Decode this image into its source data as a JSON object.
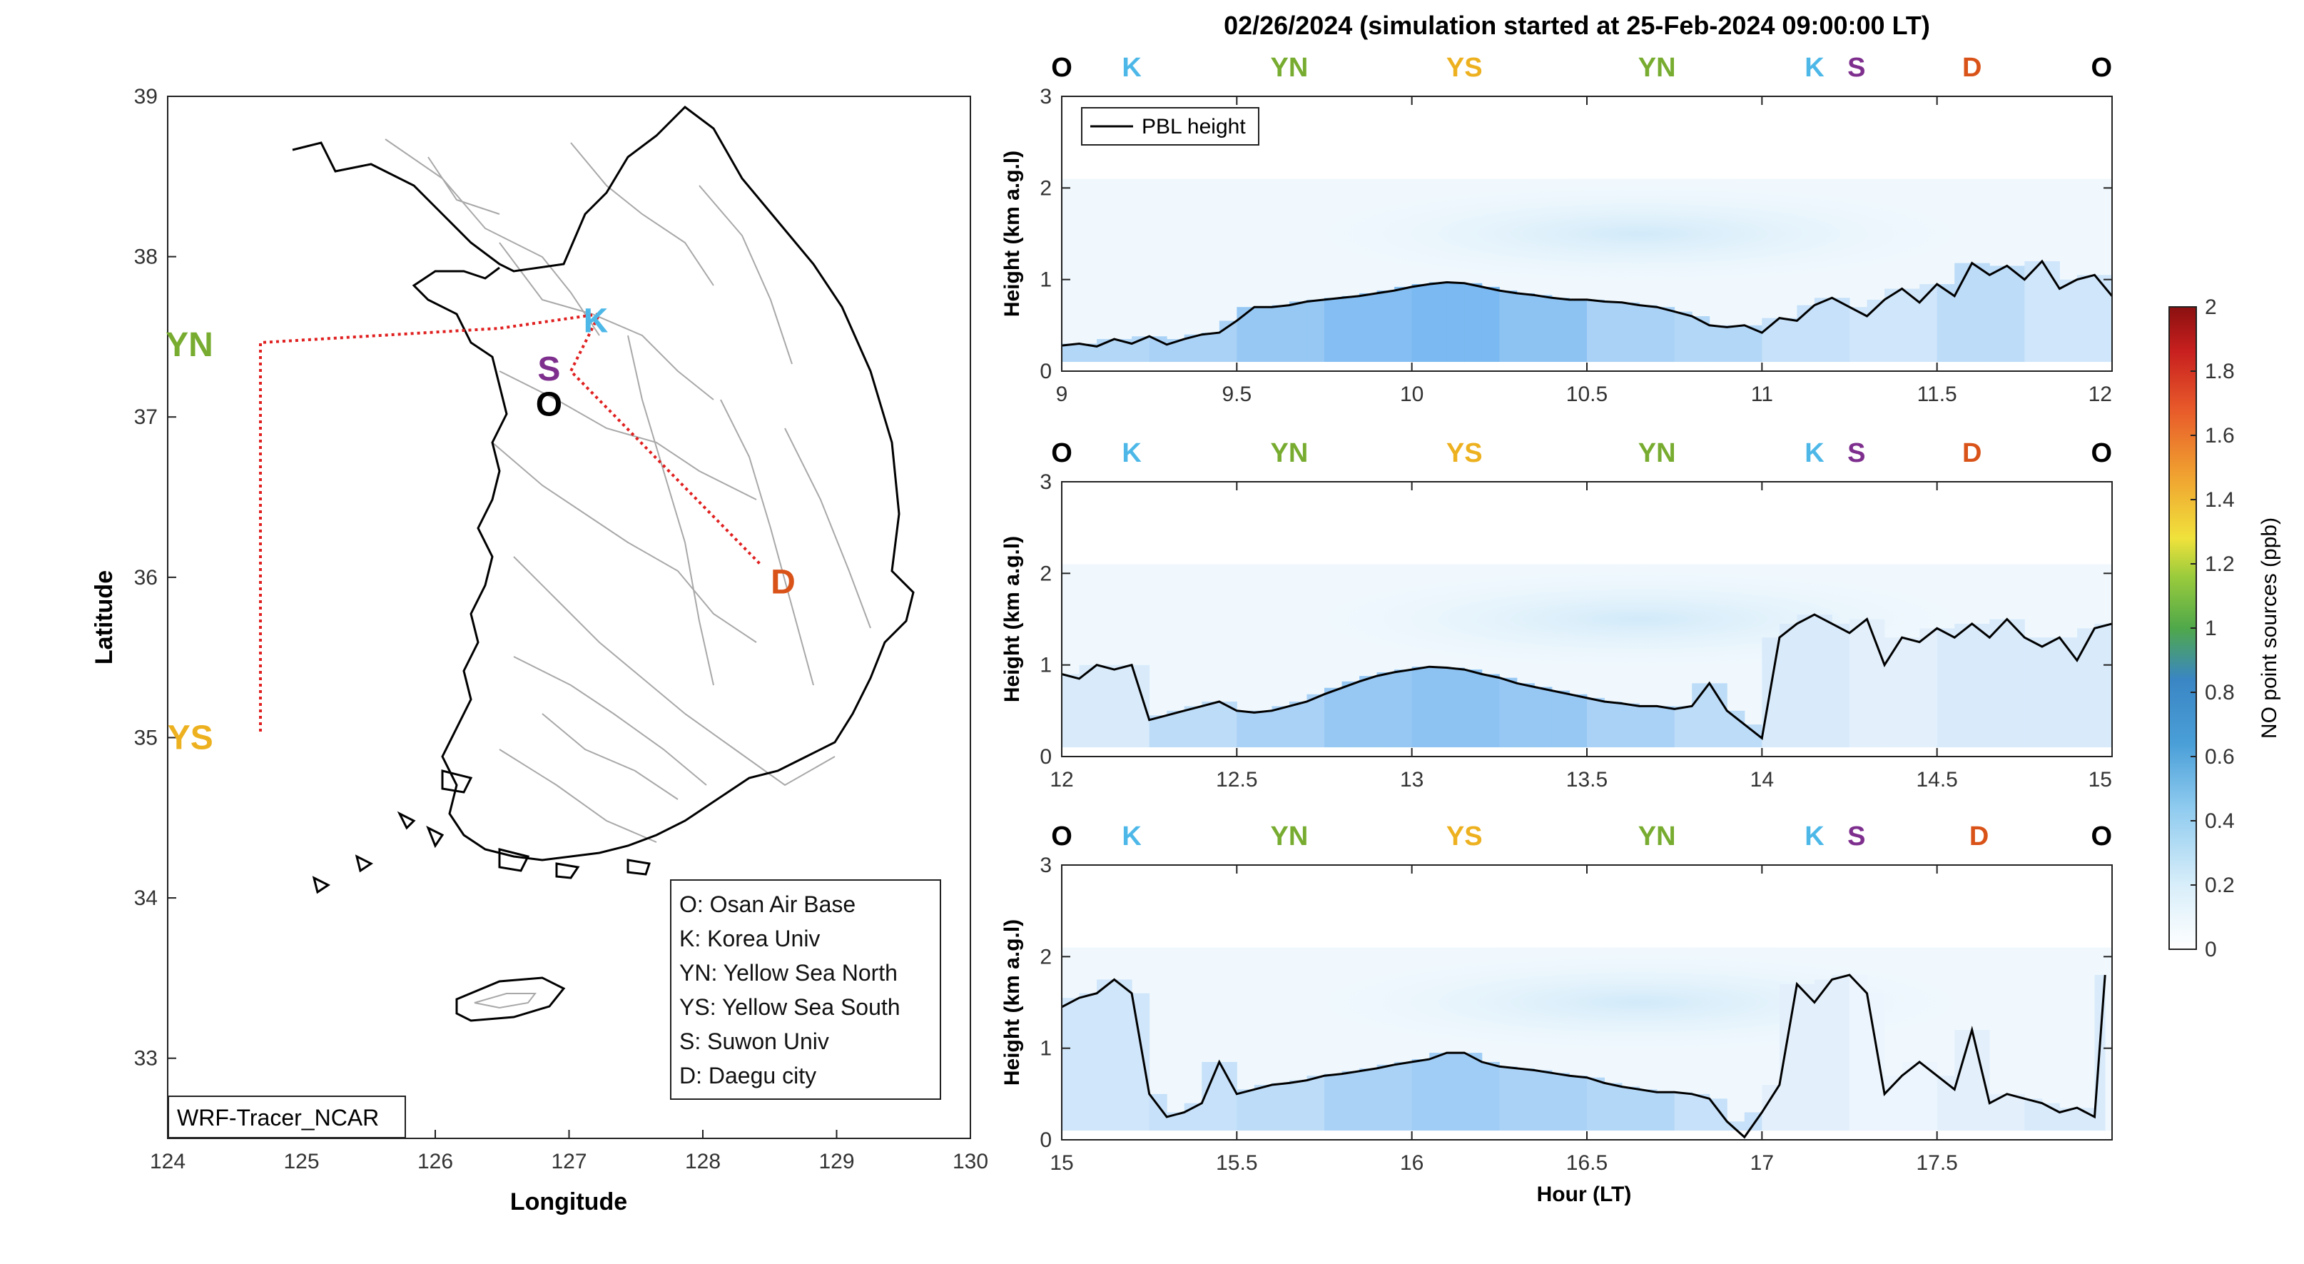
{
  "figure": {
    "title": "02/26/2024 (simulation started at 25-Feb-2024 09:00:00 LT)"
  },
  "map": {
    "xlabel": "Longitude",
    "ylabel": "Latitude",
    "xticks": [
      "124",
      "125",
      "126",
      "127",
      "128",
      "129",
      "130"
    ],
    "yticks": [
      "33",
      "34",
      "35",
      "36",
      "37",
      "38",
      "39"
    ],
    "xlim": [
      124,
      130
    ],
    "ylim": [
      32.5,
      39
    ],
    "model_label": "WRF-Tracer_NCAR",
    "sites": [
      {
        "code": "K",
        "lon": 127.2,
        "lat": 37.6,
        "color": "#4db8e8"
      },
      {
        "code": "S",
        "lon": 126.85,
        "lat": 37.3,
        "color": "#7e2f8e"
      },
      {
        "code": "O",
        "lon": 126.85,
        "lat": 37.08,
        "color": "#000000"
      },
      {
        "code": "D",
        "lon": 128.6,
        "lat": 35.97,
        "color": "#d95319"
      },
      {
        "code": "YN",
        "lon": 124.5,
        "lat": 37.45,
        "color": "#77ac30"
      },
      {
        "code": "YS",
        "lon": 124.5,
        "lat": 35.0,
        "color": "#edb120"
      }
    ],
    "legend": [
      "O: Osan Air Base",
      "K: Korea Univ",
      "YN: Yellow Sea North",
      "YS: Yellow Sea South",
      "S: Suwon Univ",
      "D: Daegu city"
    ]
  },
  "chart_data": {
    "type": "line",
    "colorbar": {
      "label": "NO point sources (ppb)",
      "ticks": [
        "0",
        "0.2",
        "0.4",
        "0.6",
        "0.8",
        "1",
        "1.2",
        "1.4",
        "1.6",
        "1.8",
        "2"
      ],
      "range": [
        0,
        2
      ]
    },
    "legend_label": "PBL height",
    "ylabel": "Height (km a.g.l)",
    "xlabel": "Hour (LT)",
    "yticks": [
      "0",
      "1",
      "2",
      "3"
    ],
    "panels": [
      {
        "xlim": [
          9,
          12
        ],
        "xticks": [
          "9",
          "9.5",
          "10",
          "10.5",
          "11",
          "11.5",
          "12"
        ],
        "markers": [
          {
            "label": "O",
            "x": 9.0,
            "color": "#000000"
          },
          {
            "label": "K",
            "x": 9.2,
            "color": "#4db8e8"
          },
          {
            "label": "YN",
            "x": 9.65,
            "color": "#77ac30"
          },
          {
            "label": "YS",
            "x": 10.15,
            "color": "#edb120"
          },
          {
            "label": "YN",
            "x": 10.7,
            "color": "#77ac30"
          },
          {
            "label": "K",
            "x": 11.15,
            "color": "#4db8e8"
          },
          {
            "label": "S",
            "x": 11.27,
            "color": "#7e2f8e"
          },
          {
            "label": "D",
            "x": 11.6,
            "color": "#d95319"
          },
          {
            "label": "O",
            "x": 11.97,
            "color": "#000000"
          }
        ],
        "pbl_x": [
          9.0,
          9.05,
          9.1,
          9.15,
          9.2,
          9.25,
          9.3,
          9.35,
          9.4,
          9.45,
          9.5,
          9.55,
          9.6,
          9.65,
          9.7,
          9.75,
          9.8,
          9.85,
          9.9,
          9.95,
          10.0,
          10.05,
          10.1,
          10.15,
          10.2,
          10.25,
          10.3,
          10.35,
          10.4,
          10.45,
          10.5,
          10.55,
          10.6,
          10.65,
          10.7,
          10.75,
          10.8,
          10.85,
          10.9,
          10.95,
          11.0,
          11.05,
          11.1,
          11.15,
          11.2,
          11.25,
          11.3,
          11.35,
          11.4,
          11.45,
          11.5,
          11.55,
          11.6,
          11.65,
          11.7,
          11.75,
          11.8,
          11.85,
          11.9,
          11.95,
          12.0
        ],
        "pbl_y": [
          0.28,
          0.3,
          0.27,
          0.35,
          0.3,
          0.38,
          0.29,
          0.35,
          0.4,
          0.42,
          0.55,
          0.7,
          0.7,
          0.72,
          0.76,
          0.78,
          0.8,
          0.82,
          0.85,
          0.88,
          0.92,
          0.95,
          0.97,
          0.96,
          0.92,
          0.88,
          0.85,
          0.83,
          0.8,
          0.78,
          0.78,
          0.76,
          0.75,
          0.72,
          0.7,
          0.65,
          0.6,
          0.5,
          0.48,
          0.5,
          0.42,
          0.58,
          0.55,
          0.72,
          0.8,
          0.7,
          0.6,
          0.78,
          0.9,
          0.75,
          0.95,
          0.82,
          1.18,
          1.05,
          1.15,
          1.0,
          1.2,
          0.9,
          1.0,
          1.05,
          0.82
        ],
        "no_intensity": [
          0.4,
          0.45,
          0.55,
          0.65,
          0.7,
          0.6,
          0.45,
          0.4,
          0.3,
          0.25,
          0.35,
          0.25
        ]
      },
      {
        "xlim": [
          12,
          15
        ],
        "xticks": [
          "12",
          "12.5",
          "13",
          "13.5",
          "14",
          "14.5",
          "15"
        ],
        "markers": [
          {
            "label": "O",
            "x": 12.0,
            "color": "#000000"
          },
          {
            "label": "K",
            "x": 12.2,
            "color": "#4db8e8"
          },
          {
            "label": "YN",
            "x": 12.65,
            "color": "#77ac30"
          },
          {
            "label": "YS",
            "x": 13.15,
            "color": "#edb120"
          },
          {
            "label": "YN",
            "x": 13.7,
            "color": "#77ac30"
          },
          {
            "label": "K",
            "x": 14.15,
            "color": "#4db8e8"
          },
          {
            "label": "S",
            "x": 14.27,
            "color": "#7e2f8e"
          },
          {
            "label": "D",
            "x": 14.6,
            "color": "#d95319"
          },
          {
            "label": "O",
            "x": 14.97,
            "color": "#000000"
          }
        ],
        "pbl_x": [
          12.0,
          12.05,
          12.1,
          12.15,
          12.2,
          12.25,
          12.3,
          12.35,
          12.4,
          12.45,
          12.5,
          12.55,
          12.6,
          12.65,
          12.7,
          12.75,
          12.8,
          12.85,
          12.9,
          12.95,
          13.0,
          13.05,
          13.1,
          13.15,
          13.2,
          13.25,
          13.3,
          13.35,
          13.4,
          13.45,
          13.5,
          13.55,
          13.6,
          13.65,
          13.7,
          13.75,
          13.8,
          13.85,
          13.9,
          13.95,
          14.0,
          14.05,
          14.1,
          14.15,
          14.2,
          14.25,
          14.3,
          14.35,
          14.4,
          14.45,
          14.5,
          14.55,
          14.6,
          14.65,
          14.7,
          14.75,
          14.8,
          14.85,
          14.9,
          14.95,
          15.0
        ],
        "pbl_y": [
          0.9,
          0.85,
          1.0,
          0.95,
          1.0,
          0.4,
          0.45,
          0.5,
          0.55,
          0.6,
          0.5,
          0.48,
          0.5,
          0.55,
          0.6,
          0.68,
          0.75,
          0.82,
          0.88,
          0.92,
          0.95,
          0.98,
          0.97,
          0.95,
          0.9,
          0.86,
          0.8,
          0.76,
          0.72,
          0.68,
          0.64,
          0.6,
          0.58,
          0.55,
          0.55,
          0.52,
          0.55,
          0.8,
          0.5,
          0.35,
          0.2,
          1.3,
          1.45,
          1.55,
          1.45,
          1.35,
          1.5,
          1.0,
          1.3,
          1.25,
          1.4,
          1.3,
          1.45,
          1.3,
          1.5,
          1.3,
          1.2,
          1.3,
          1.05,
          1.4,
          1.45
        ],
        "no_intensity": [
          0.2,
          0.35,
          0.45,
          0.55,
          0.6,
          0.55,
          0.45,
          0.35,
          0.2,
          0.15,
          0.2,
          0.2
        ]
      },
      {
        "xlim": [
          15,
          18
        ],
        "xticks": [
          "15",
          "15.5",
          "16",
          "16.5",
          "17",
          "17.5"
        ],
        "markers": [
          {
            "label": "O",
            "x": 15.0,
            "color": "#000000"
          },
          {
            "label": "K",
            "x": 15.2,
            "color": "#4db8e8"
          },
          {
            "label": "YN",
            "x": 15.65,
            "color": "#77ac30"
          },
          {
            "label": "YS",
            "x": 16.15,
            "color": "#edb120"
          },
          {
            "label": "YN",
            "x": 16.7,
            "color": "#77ac30"
          },
          {
            "label": "K",
            "x": 17.15,
            "color": "#4db8e8"
          },
          {
            "label": "S",
            "x": 17.27,
            "color": "#7e2f8e"
          },
          {
            "label": "D",
            "x": 17.62,
            "color": "#d95319"
          },
          {
            "label": "O",
            "x": 17.97,
            "color": "#000000"
          }
        ],
        "pbl_x": [
          15.0,
          15.05,
          15.1,
          15.15,
          15.2,
          15.25,
          15.3,
          15.35,
          15.4,
          15.45,
          15.5,
          15.55,
          15.6,
          15.65,
          15.7,
          15.75,
          15.8,
          15.85,
          15.9,
          15.95,
          16.0,
          16.05,
          16.1,
          16.15,
          16.2,
          16.25,
          16.3,
          16.35,
          16.4,
          16.45,
          16.5,
          16.55,
          16.6,
          16.65,
          16.7,
          16.75,
          16.8,
          16.85,
          16.9,
          16.95,
          17.0,
          17.05,
          17.1,
          17.15,
          17.2,
          17.25,
          17.3,
          17.35,
          17.4,
          17.45,
          17.5,
          17.55,
          17.6,
          17.65,
          17.7,
          17.75,
          17.8,
          17.85,
          17.9,
          17.95,
          17.98
        ],
        "pbl_y": [
          1.45,
          1.55,
          1.6,
          1.75,
          1.6,
          0.5,
          0.25,
          0.3,
          0.4,
          0.85,
          0.5,
          0.55,
          0.6,
          0.62,
          0.65,
          0.7,
          0.72,
          0.75,
          0.78,
          0.82,
          0.85,
          0.88,
          0.95,
          0.95,
          0.85,
          0.8,
          0.78,
          0.76,
          0.73,
          0.7,
          0.68,
          0.62,
          0.58,
          0.55,
          0.52,
          0.52,
          0.5,
          0.45,
          0.2,
          0.03,
          0.3,
          0.6,
          1.7,
          1.5,
          1.75,
          1.8,
          1.6,
          0.5,
          0.7,
          0.85,
          0.7,
          0.55,
          1.2,
          0.4,
          0.5,
          0.45,
          0.4,
          0.3,
          0.35,
          0.25,
          1.8
        ],
        "no_intensity": [
          0.25,
          0.3,
          0.35,
          0.45,
          0.5,
          0.45,
          0.4,
          0.3,
          0.15,
          0.1,
          0.15,
          0.2
        ]
      }
    ]
  }
}
